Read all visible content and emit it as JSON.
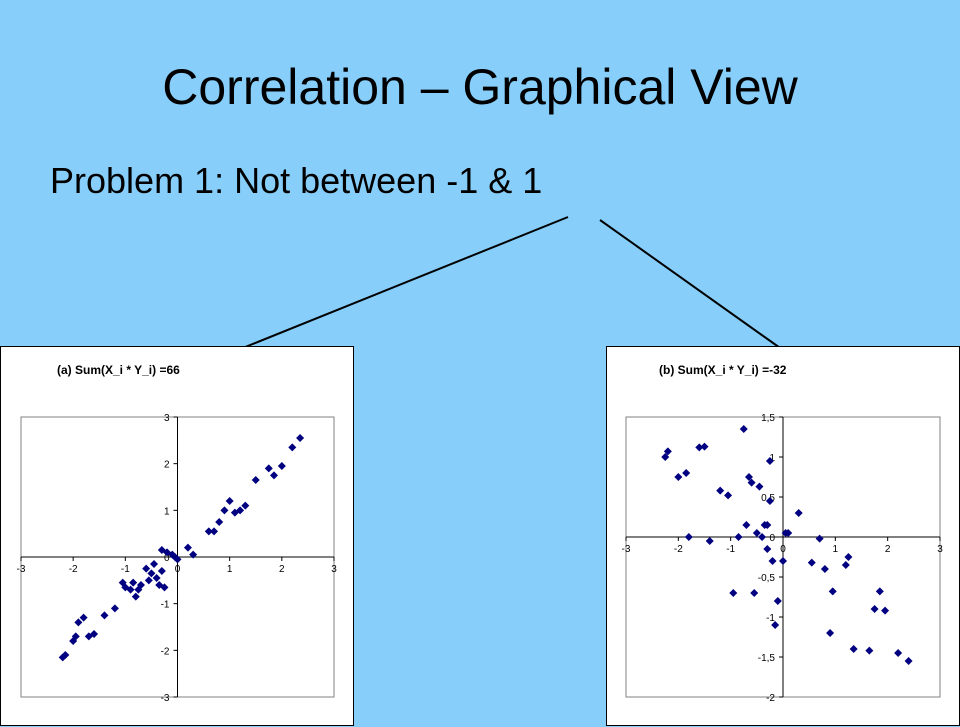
{
  "slide": {
    "title": "Correlation – Graphical View",
    "bullet": "Problem 1:  Not between -1 & 1"
  },
  "colors": {
    "background": "#87CFFA",
    "marker": "#000080",
    "arrow": "#000000"
  },
  "chart_data": [
    {
      "type": "scatter",
      "title": "(a)  Sum(X_i * Y_i) =66",
      "xlim": [
        -3,
        3
      ],
      "ylim": [
        -3,
        3
      ],
      "xticks": [
        -3,
        -2,
        -1,
        0,
        1,
        2,
        3
      ],
      "yticks": [
        -3,
        -2,
        -1,
        0,
        1,
        2,
        3
      ],
      "xtick_labels": [
        "-3",
        "-2",
        "-1",
        "0",
        "1",
        "2",
        "3"
      ],
      "ytick_labels": [
        "-3",
        "-2",
        "-1",
        "0",
        "1",
        "2",
        "3"
      ],
      "grid": false,
      "marker": "diamond",
      "points": [
        [
          -2.2,
          -2.15
        ],
        [
          -2.15,
          -2.1
        ],
        [
          -2.0,
          -1.8
        ],
        [
          -1.95,
          -1.7
        ],
        [
          -1.9,
          -1.4
        ],
        [
          -1.8,
          -1.3
        ],
        [
          -1.7,
          -1.7
        ],
        [
          -1.6,
          -1.65
        ],
        [
          -1.4,
          -1.25
        ],
        [
          -1.2,
          -1.1
        ],
        [
          -1.05,
          -0.55
        ],
        [
          -1.0,
          -0.65
        ],
        [
          -0.9,
          -0.7
        ],
        [
          -0.85,
          -0.55
        ],
        [
          -0.8,
          -0.85
        ],
        [
          -0.75,
          -0.7
        ],
        [
          -0.7,
          -0.6
        ],
        [
          -0.6,
          -0.25
        ],
        [
          -0.55,
          -0.5
        ],
        [
          -0.5,
          -0.35
        ],
        [
          -0.45,
          -0.15
        ],
        [
          -0.4,
          -0.45
        ],
        [
          -0.35,
          -0.6
        ],
        [
          -0.3,
          -0.3
        ],
        [
          -0.25,
          -0.65
        ],
        [
          -0.3,
          0.15
        ],
        [
          -0.2,
          0.1
        ],
        [
          -0.1,
          0.05
        ],
        [
          -0.05,
          0.0
        ],
        [
          0.0,
          -0.05
        ],
        [
          0.2,
          0.2
        ],
        [
          0.3,
          0.05
        ],
        [
          0.6,
          0.55
        ],
        [
          0.7,
          0.55
        ],
        [
          0.8,
          0.75
        ],
        [
          0.9,
          1.0
        ],
        [
          1.0,
          1.2
        ],
        [
          1.1,
          0.95
        ],
        [
          1.2,
          1.0
        ],
        [
          1.3,
          1.1
        ],
        [
          1.5,
          1.65
        ],
        [
          1.75,
          1.9
        ],
        [
          1.85,
          1.75
        ],
        [
          2.0,
          1.95
        ],
        [
          2.2,
          2.35
        ],
        [
          2.35,
          2.55
        ]
      ]
    },
    {
      "type": "scatter",
      "title": "(b)  Sum(X_i * Y_i) =-32",
      "xlim": [
        -3,
        3
      ],
      "ylim": [
        -2,
        1.5
      ],
      "xticks": [
        -3,
        -2,
        -1,
        0,
        1,
        2,
        3
      ],
      "yticks": [
        -2,
        -1.5,
        -1,
        -0.5,
        0,
        0.5,
        1,
        1.5
      ],
      "xtick_labels": [
        "-3",
        "-2",
        "-1",
        "0",
        "1",
        "2",
        "3"
      ],
      "ytick_labels": [
        "-2",
        "-1,5",
        "-1",
        "-0,5",
        "0",
        "0,5",
        "1",
        "1,5"
      ],
      "grid": false,
      "marker": "diamond",
      "points": [
        [
          -2.25,
          1.0
        ],
        [
          -2.2,
          1.07
        ],
        [
          -2.0,
          0.75
        ],
        [
          -1.85,
          0.8
        ],
        [
          -1.8,
          0.0
        ],
        [
          -1.6,
          1.12
        ],
        [
          -1.5,
          1.13
        ],
        [
          -1.4,
          -0.05
        ],
        [
          -1.2,
          0.58
        ],
        [
          -1.05,
          0.52
        ],
        [
          -0.95,
          -0.7
        ],
        [
          -0.85,
          0.0
        ],
        [
          -0.75,
          1.35
        ],
        [
          -0.7,
          0.15
        ],
        [
          -0.65,
          0.75
        ],
        [
          -0.6,
          0.68
        ],
        [
          -0.55,
          -0.7
        ],
        [
          -0.5,
          0.05
        ],
        [
          -0.45,
          0.63
        ],
        [
          -0.4,
          0.0
        ],
        [
          -0.35,
          0.15
        ],
        [
          -0.3,
          0.15
        ],
        [
          -0.3,
          -0.15
        ],
        [
          -0.25,
          0.95
        ],
        [
          -0.2,
          -0.3
        ],
        [
          -0.25,
          0.45
        ],
        [
          -0.15,
          -1.1
        ],
        [
          -0.1,
          -0.8
        ],
        [
          0.0,
          -0.3
        ],
        [
          0.05,
          0.05
        ],
        [
          0.1,
          0.05
        ],
        [
          0.3,
          0.3
        ],
        [
          0.55,
          -0.32
        ],
        [
          0.7,
          -0.02
        ],
        [
          0.8,
          -0.4
        ],
        [
          0.9,
          -1.2
        ],
        [
          0.95,
          -0.68
        ],
        [
          1.2,
          -0.35
        ],
        [
          1.25,
          -0.25
        ],
        [
          1.35,
          -1.4
        ],
        [
          1.65,
          -1.42
        ],
        [
          1.75,
          -0.9
        ],
        [
          1.85,
          -0.68
        ],
        [
          1.95,
          -0.92
        ],
        [
          2.2,
          -1.45
        ],
        [
          2.4,
          -1.55
        ]
      ]
    }
  ]
}
